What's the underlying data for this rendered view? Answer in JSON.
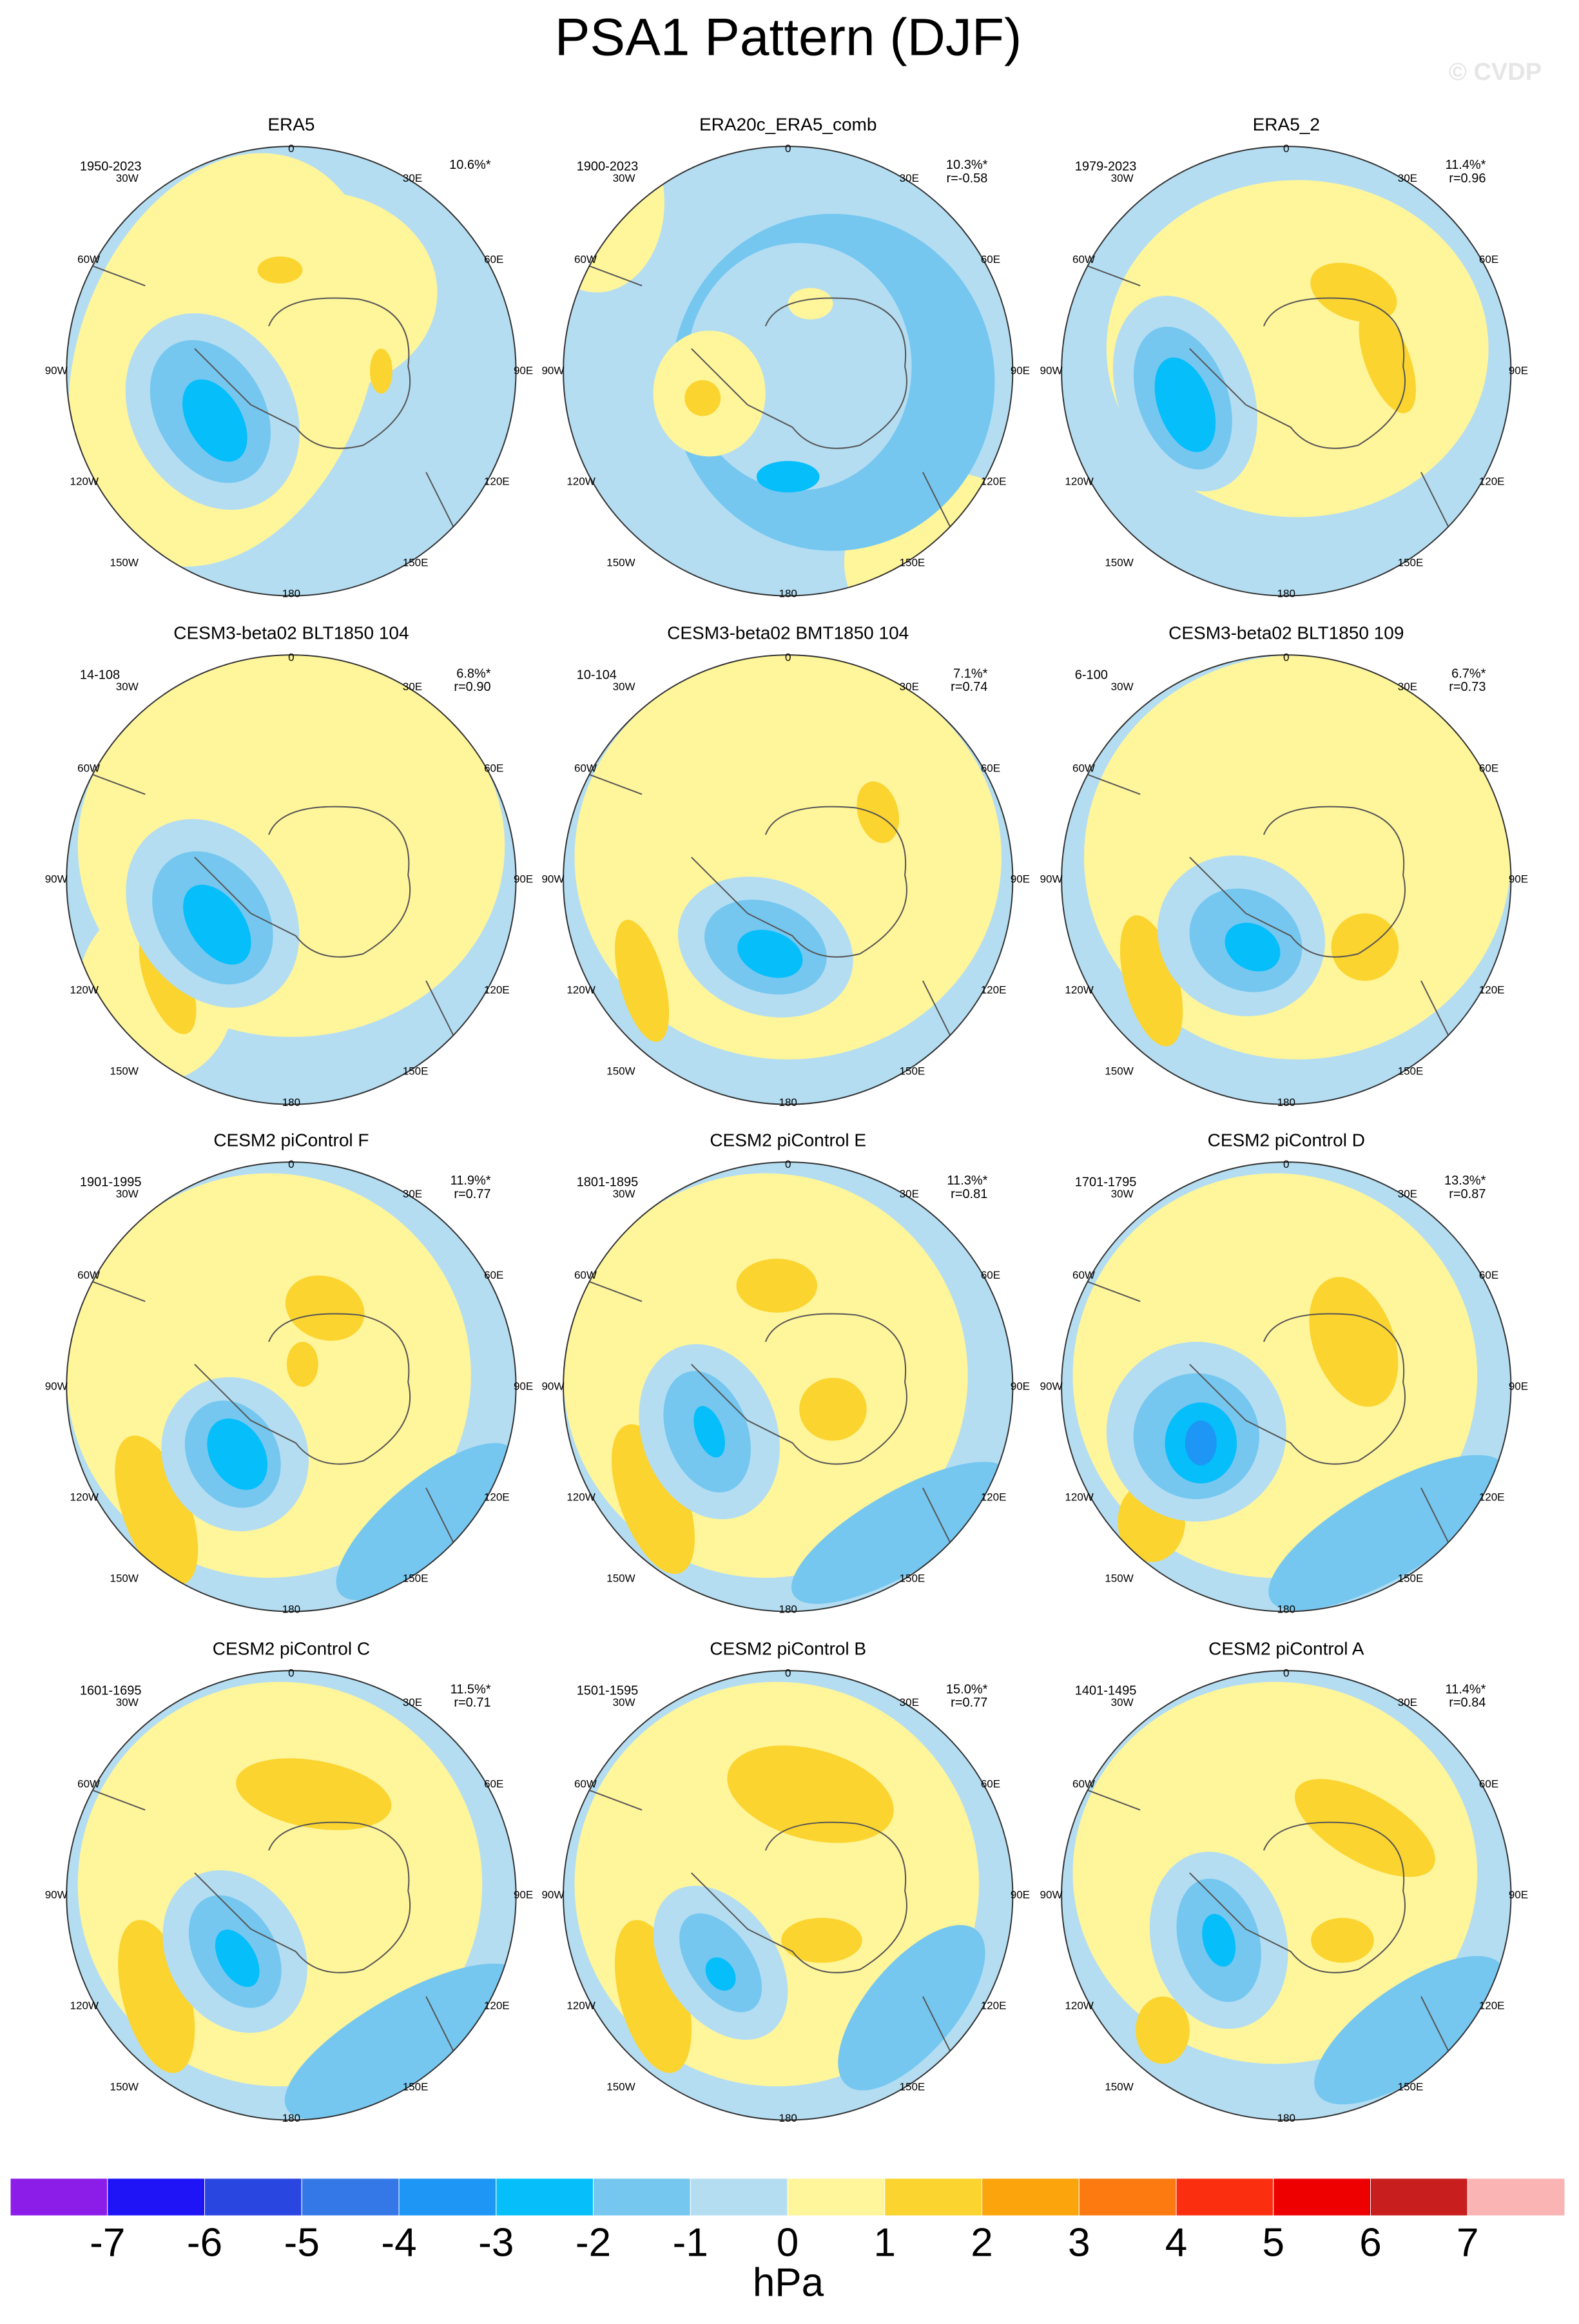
{
  "title": "PSA1 Pattern (DJF)",
  "watermark": "© CVDP",
  "lon_labels": [
    "0",
    "30E",
    "60E",
    "90E",
    "120E",
    "150E",
    "180",
    "150W",
    "120W",
    "90W",
    "60W",
    "30W"
  ],
  "panels": [
    {
      "title": "ERA5",
      "period": "1950-2023",
      "pct": "10.6%*"
    },
    {
      "title": "ERA20c_ERA5_comb",
      "period": "1900-2023",
      "pct": "10.3%*",
      "r": "r=-0.58"
    },
    {
      "title": "ERA5_2",
      "period": "1979-2023",
      "pct": "11.4%*",
      "r": "r=0.96"
    },
    {
      "title": "CESM3-beta02 BLT1850 104",
      "period": "14-108",
      "pct": "6.8%*",
      "r": "r=0.90"
    },
    {
      "title": "CESM3-beta02 BMT1850 104",
      "period": "10-104",
      "pct": "7.1%*",
      "r": "r=0.74"
    },
    {
      "title": "CESM3-beta02 BLT1850 109",
      "period": "6-100",
      "pct": "6.7%*",
      "r": "r=0.73"
    },
    {
      "title": "CESM2 piControl F",
      "period": "1901-1995",
      "pct": "11.9%*",
      "r": "r=0.77"
    },
    {
      "title": "CESM2 piControl E",
      "period": "1801-1895",
      "pct": "11.3%*",
      "r": "r=0.81"
    },
    {
      "title": "CESM2 piControl D",
      "period": "1701-1795",
      "pct": "13.3%*",
      "r": "r=0.87"
    },
    {
      "title": "CESM2 piControl C",
      "period": "1601-1695",
      "pct": "11.5%*",
      "r": "r=0.71"
    },
    {
      "title": "CESM2 piControl B",
      "period": "1501-1595",
      "pct": "15.0%*",
      "r": "r=0.77"
    },
    {
      "title": "CESM2 piControl A",
      "period": "1401-1495",
      "pct": "11.4%*",
      "r": "r=0.84"
    }
  ],
  "colorbar": {
    "labels": [
      -7,
      -6,
      -5,
      -4,
      -3,
      -2,
      -1,
      0,
      1,
      2,
      3,
      4,
      5,
      6,
      7
    ],
    "unit": "hPa",
    "colors": [
      "#8c1de8",
      "#1e14f5",
      "#2a46e0",
      "#3478e8",
      "#1e96f5",
      "#05befa",
      "#75c7f0",
      "#b4ddf2",
      "#fff59b",
      "#fbd42f",
      "#fba40c",
      "#fc7a0f",
      "#fb2f10",
      "#ee0000",
      "#c81e1e",
      "#fbb4b4"
    ]
  }
}
